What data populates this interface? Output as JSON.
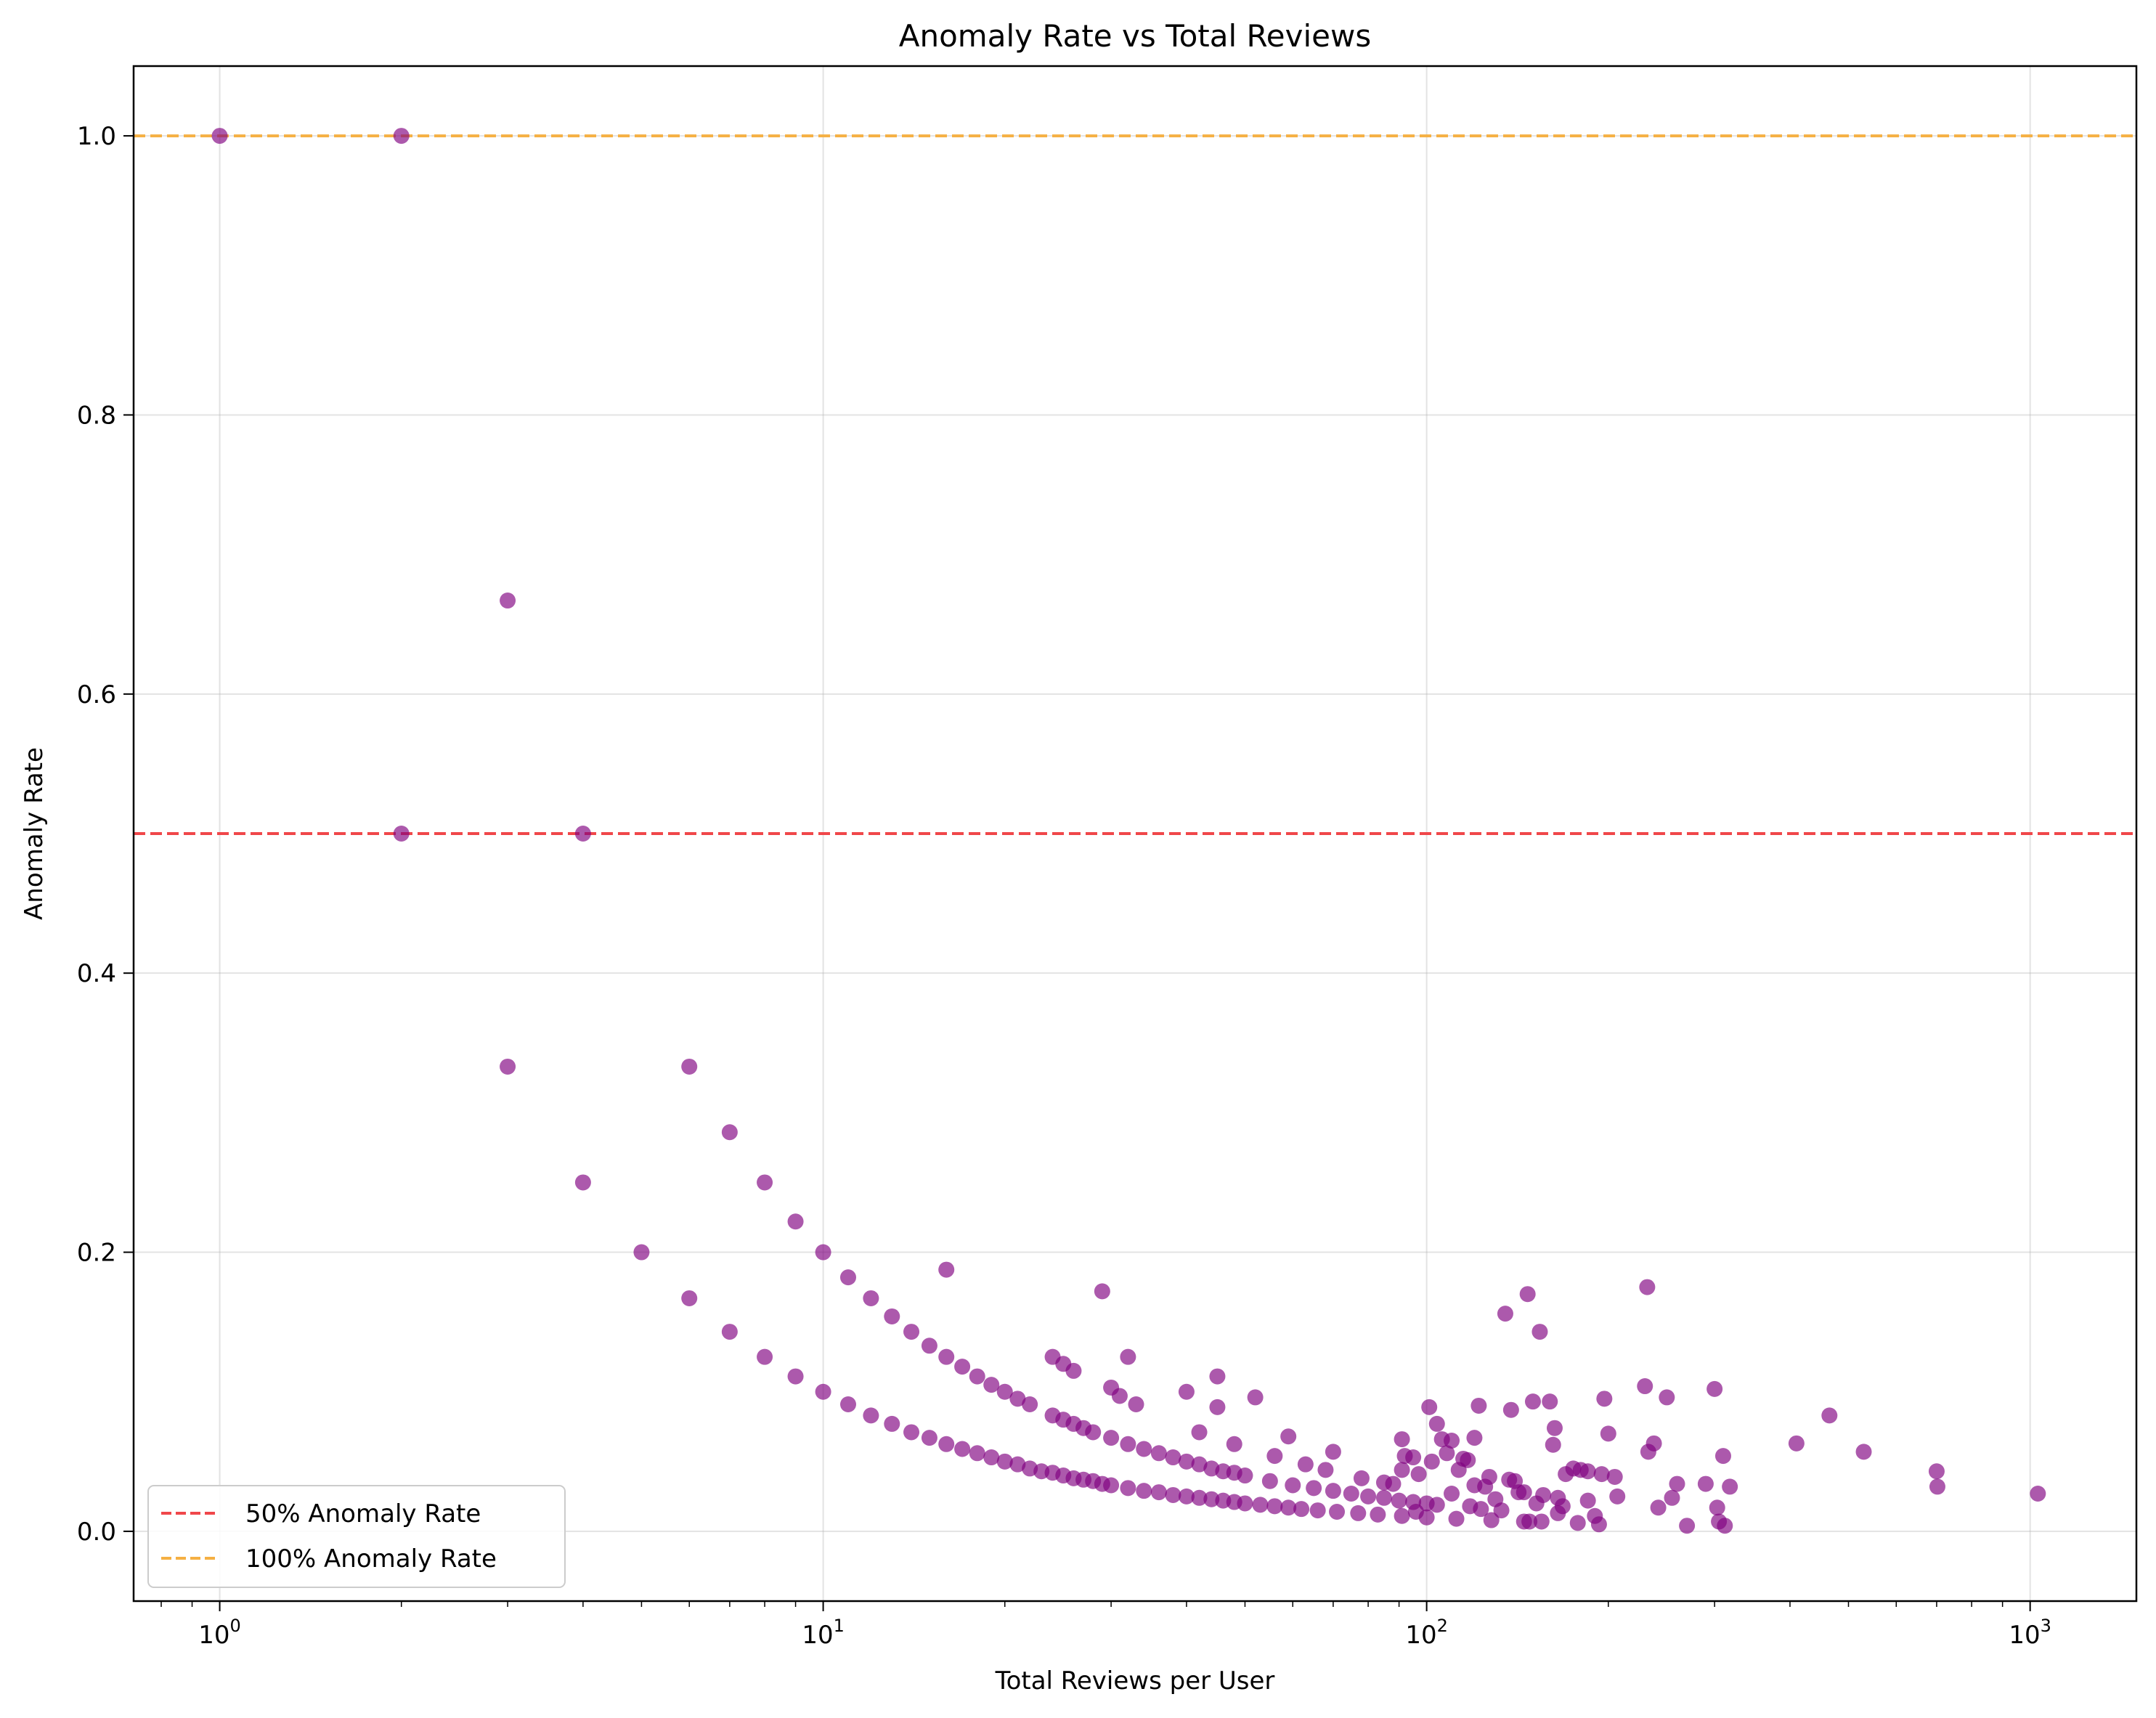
{
  "chart_data": {
    "type": "scatter",
    "title": "Anomaly Rate vs Total Reviews",
    "xlabel": "Total Reviews per User",
    "ylabel": "Anomaly Rate",
    "xscale": "log",
    "xlim": [
      0.72,
      1500
    ],
    "ylim": [
      -0.05,
      1.05
    ],
    "x_ticks": [
      {
        "value": 1,
        "base": "10",
        "exp": "0"
      },
      {
        "value": 10,
        "base": "10",
        "exp": "1"
      },
      {
        "value": 100,
        "base": "10",
        "exp": "2"
      },
      {
        "value": 1000,
        "base": "10",
        "exp": "3"
      }
    ],
    "y_ticks": [
      {
        "value": 0.0,
        "label": "0.0"
      },
      {
        "value": 0.2,
        "label": "0.2"
      },
      {
        "value": 0.4,
        "label": "0.4"
      },
      {
        "value": 0.6,
        "label": "0.6"
      },
      {
        "value": 0.8,
        "label": "0.8"
      },
      {
        "value": 1.0,
        "label": "1.0"
      }
    ],
    "grid": true,
    "legend_position": "lower-left",
    "reference_lines": [
      {
        "name": "50% Anomaly Rate",
        "y": 0.5,
        "color": "#f0474a",
        "style": "dashed"
      },
      {
        "name": "100% Anomaly Rate",
        "y": 1.0,
        "color": "#f5b043",
        "style": "dashed"
      }
    ],
    "series": [
      {
        "color": "#800080",
        "alpha": 0.65,
        "points": [
          [
            1,
            1.0
          ],
          [
            2,
            1.0
          ],
          [
            2,
            0.5
          ],
          [
            3,
            0.667
          ],
          [
            3,
            0.333
          ],
          [
            4,
            0.5
          ],
          [
            4,
            0.25
          ],
          [
            5,
            0.2
          ],
          [
            6,
            0.333
          ],
          [
            6,
            0.167
          ],
          [
            7,
            0.286
          ],
          [
            7,
            0.143
          ],
          [
            8,
            0.25
          ],
          [
            8,
            0.125
          ],
          [
            9,
            0.222
          ],
          [
            9,
            0.111
          ],
          [
            10,
            0.2
          ],
          [
            10,
            0.1
          ],
          [
            11,
            0.182
          ],
          [
            11,
            0.091
          ],
          [
            12,
            0.167
          ],
          [
            12,
            0.083
          ],
          [
            13,
            0.154
          ],
          [
            13,
            0.077
          ],
          [
            14,
            0.143
          ],
          [
            14,
            0.071
          ],
          [
            15,
            0.133
          ],
          [
            15,
            0.067
          ],
          [
            16,
            0.125
          ],
          [
            16,
            0.0625
          ],
          [
            17,
            0.118
          ],
          [
            17,
            0.059
          ],
          [
            18,
            0.111
          ],
          [
            18,
            0.056
          ],
          [
            19,
            0.105
          ],
          [
            19,
            0.053
          ],
          [
            20,
            0.1
          ],
          [
            20,
            0.05
          ],
          [
            21,
            0.095
          ],
          [
            21,
            0.048
          ],
          [
            22,
            0.091
          ],
          [
            22,
            0.045
          ],
          [
            23,
            0.043
          ],
          [
            24,
            0.042
          ],
          [
            25,
            0.04
          ],
          [
            26,
            0.038
          ],
          [
            27,
            0.037
          ],
          [
            28,
            0.036
          ],
          [
            29,
            0.034
          ],
          [
            30,
            0.033
          ],
          [
            32,
            0.031
          ],
          [
            34,
            0.029
          ],
          [
            36,
            0.028
          ],
          [
            38,
            0.026
          ],
          [
            40,
            0.025
          ],
          [
            42,
            0.024
          ],
          [
            44,
            0.023
          ],
          [
            46,
            0.022
          ],
          [
            48,
            0.021
          ],
          [
            50,
            0.02
          ],
          [
            53,
            0.019
          ],
          [
            56,
            0.018
          ],
          [
            59,
            0.017
          ],
          [
            62,
            0.016
          ],
          [
            66,
            0.015
          ],
          [
            71,
            0.014
          ],
          [
            77,
            0.013
          ],
          [
            83,
            0.012
          ],
          [
            91,
            0.011
          ],
          [
            100,
            0.01
          ],
          [
            24,
            0.083
          ],
          [
            25,
            0.08
          ],
          [
            26,
            0.077
          ],
          [
            27,
            0.074
          ],
          [
            28,
            0.071
          ],
          [
            30,
            0.067
          ],
          [
            32,
            0.0625
          ],
          [
            34,
            0.059
          ],
          [
            36,
            0.056
          ],
          [
            38,
            0.053
          ],
          [
            40,
            0.05
          ],
          [
            42,
            0.048
          ],
          [
            44,
            0.045
          ],
          [
            46,
            0.043
          ],
          [
            48,
            0.042
          ],
          [
            50,
            0.04
          ],
          [
            55,
            0.036
          ],
          [
            60,
            0.033
          ],
          [
            65,
            0.031
          ],
          [
            70,
            0.029
          ],
          [
            75,
            0.027
          ],
          [
            80,
            0.025
          ],
          [
            85,
            0.024
          ],
          [
            90,
            0.022
          ],
          [
            95,
            0.021
          ],
          [
            100,
            0.02
          ],
          [
            16,
            0.1875
          ],
          [
            24,
            0.125
          ],
          [
            25,
            0.12
          ],
          [
            26,
            0.115
          ],
          [
            29,
            0.172
          ],
          [
            30,
            0.103
          ],
          [
            31,
            0.097
          ],
          [
            32,
            0.125
          ],
          [
            33,
            0.091
          ],
          [
            40,
            0.1
          ],
          [
            45,
            0.111
          ],
          [
            45,
            0.089
          ],
          [
            42,
            0.071
          ],
          [
            48,
            0.0625
          ],
          [
            52,
            0.096
          ],
          [
            56,
            0.054
          ],
          [
            59,
            0.068
          ],
          [
            63,
            0.048
          ],
          [
            68,
            0.044
          ],
          [
            70,
            0.057
          ],
          [
            78,
            0.038
          ],
          [
            85,
            0.035
          ],
          [
            88,
            0.034
          ],
          [
            91,
            0.044
          ],
          [
            91,
            0.066
          ],
          [
            92,
            0.054
          ],
          [
            95,
            0.053
          ],
          [
            97,
            0.041
          ],
          [
            101,
            0.089
          ],
          [
            102,
            0.05
          ],
          [
            104,
            0.077
          ],
          [
            106,
            0.066
          ],
          [
            108,
            0.056
          ],
          [
            110,
            0.065
          ],
          [
            113,
            0.044
          ],
          [
            115,
            0.052
          ],
          [
            117,
            0.051
          ],
          [
            120,
            0.067
          ],
          [
            122,
            0.09
          ],
          [
            125,
            0.032
          ],
          [
            127,
            0.039
          ],
          [
            130,
            0.023
          ],
          [
            133,
            0.015
          ],
          [
            135,
            0.156
          ],
          [
            137,
            0.037
          ],
          [
            138,
            0.087
          ],
          [
            140,
            0.036
          ],
          [
            142,
            0.028
          ],
          [
            145,
            0.028
          ],
          [
            147,
            0.17
          ],
          [
            150,
            0.093
          ],
          [
            152,
            0.02
          ],
          [
            154,
            0.143
          ],
          [
            156,
            0.026
          ],
          [
            160,
            0.093
          ],
          [
            162,
            0.062
          ],
          [
            163,
            0.074
          ],
          [
            165,
            0.024
          ],
          [
            168,
            0.018
          ],
          [
            170,
            0.041
          ],
          [
            175,
            0.045
          ],
          [
            180,
            0.044
          ],
          [
            185,
            0.043
          ],
          [
            190,
            0.011
          ],
          [
            195,
            0.041
          ],
          [
            197,
            0.095
          ],
          [
            200,
            0.07
          ],
          [
            205,
            0.039
          ],
          [
            207,
            0.025
          ],
          [
            230,
            0.104
          ],
          [
            232,
            0.175
          ],
          [
            233,
            0.057
          ],
          [
            238,
            0.063
          ],
          [
            242,
            0.017
          ],
          [
            250,
            0.096
          ],
          [
            255,
            0.024
          ],
          [
            260,
            0.034
          ],
          [
            270,
            0.004
          ],
          [
            290,
            0.034
          ],
          [
            300,
            0.102
          ],
          [
            303,
            0.017
          ],
          [
            305,
            0.007
          ],
          [
            310,
            0.054
          ],
          [
            312,
            0.004
          ],
          [
            318,
            0.032
          ],
          [
            410,
            0.063
          ],
          [
            465,
            0.083
          ],
          [
            530,
            0.057
          ],
          [
            700,
            0.043
          ],
          [
            702,
            0.032
          ],
          [
            1030,
            0.027
          ],
          [
            112,
            0.009
          ],
          [
            118,
            0.018
          ],
          [
            123,
            0.016
          ],
          [
            128,
            0.008
          ],
          [
            145,
            0.007
          ],
          [
            148,
            0.007
          ],
          [
            155,
            0.007
          ],
          [
            165,
            0.013
          ],
          [
            178,
            0.006
          ],
          [
            185,
            0.022
          ],
          [
            193,
            0.005
          ],
          [
            104,
            0.019
          ],
          [
            96,
            0.014
          ],
          [
            120,
            0.033
          ],
          [
            110,
            0.027
          ]
        ]
      }
    ]
  }
}
